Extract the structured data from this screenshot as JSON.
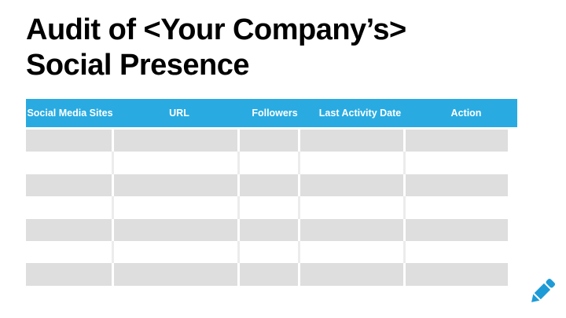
{
  "title": {
    "line1": "Audit of <Your Company’s>",
    "line2": "Social Presence"
  },
  "table": {
    "columns": [
      {
        "id": "social-media-sites",
        "label": "Social Media Sites"
      },
      {
        "id": "url",
        "label": "URL"
      },
      {
        "id": "followers",
        "label": "Followers"
      },
      {
        "id": "last-activity-date",
        "label": "Last Activity Date"
      },
      {
        "id": "action",
        "label": "Action"
      }
    ],
    "rows": [
      [
        "",
        "",
        "",
        "",
        ""
      ],
      [
        "",
        "",
        "",
        "",
        ""
      ],
      [
        "",
        "",
        "",
        "",
        ""
      ],
      [
        "",
        "",
        "",
        "",
        ""
      ],
      [
        "",
        "",
        "",
        "",
        ""
      ],
      [
        "",
        "",
        "",
        "",
        ""
      ],
      [
        "",
        "",
        "",
        "",
        ""
      ]
    ]
  },
  "icons": {
    "edit_pencil": "pencil-icon"
  },
  "colors": {
    "header_blue": "#29abe2",
    "row_gray": "#dedede",
    "row_white": "#ffffff",
    "sep_light": "#ececec",
    "pencil_blue": "#1d9bd7",
    "title_black": "#000000"
  }
}
